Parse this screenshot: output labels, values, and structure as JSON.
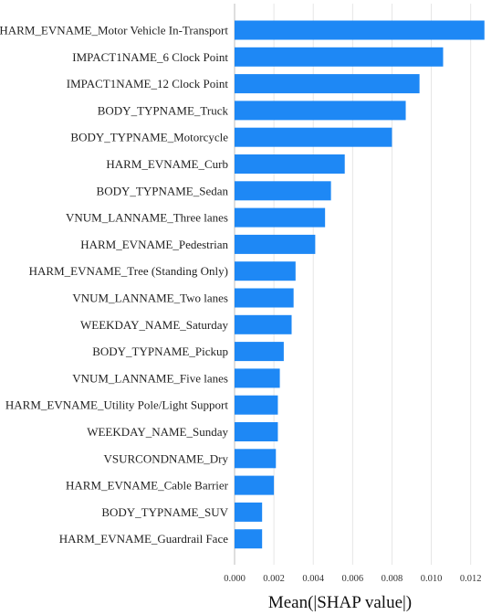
{
  "chart_data": {
    "type": "bar",
    "orientation": "horizontal",
    "categories": [
      "HARM_EVNAME_Motor Vehicle In-Transport",
      "IMPACT1NAME_6 Clock Point",
      "IMPACT1NAME_12 Clock Point",
      "BODY_TYPNAME_Truck",
      "BODY_TYPNAME_Motorcycle",
      "HARM_EVNAME_Curb",
      "BODY_TYPNAME_Sedan",
      "VNUM_LANNAME_Three lanes",
      "HARM_EVNAME_Pedestrian",
      "HARM_EVNAME_Tree (Standing Only)",
      "VNUM_LANNAME_Two lanes",
      "WEEKDAY_NAME_Saturday",
      "BODY_TYPNAME_Pickup",
      "VNUM_LANNAME_Five lanes",
      "HARM_EVNAME_Utility Pole/Light Support",
      "WEEKDAY_NAME_Sunday",
      "VSURCONDNAME_Dry",
      "HARM_EVNAME_Cable Barrier",
      "BODY_TYPNAME_SUV",
      "HARM_EVNAME_Guardrail Face"
    ],
    "values": [
      0.0127,
      0.0106,
      0.0094,
      0.0087,
      0.008,
      0.0056,
      0.0049,
      0.0046,
      0.0041,
      0.0031,
      0.003,
      0.0029,
      0.0025,
      0.0023,
      0.0022,
      0.0022,
      0.0021,
      0.002,
      0.0014,
      0.0014
    ],
    "xlabel": "Mean(|SHAP value|)",
    "xlim": [
      0,
      0.0135
    ],
    "xticks": [
      0.0,
      0.002,
      0.004,
      0.006,
      0.008,
      0.01,
      0.012
    ],
    "xtick_labels": [
      "0.000",
      "0.002",
      "0.004",
      "0.006",
      "0.008",
      "0.010",
      "0.012"
    ],
    "grid": true,
    "bar_color": "#1e88f5",
    "grid_color": "#e6e6e6"
  }
}
